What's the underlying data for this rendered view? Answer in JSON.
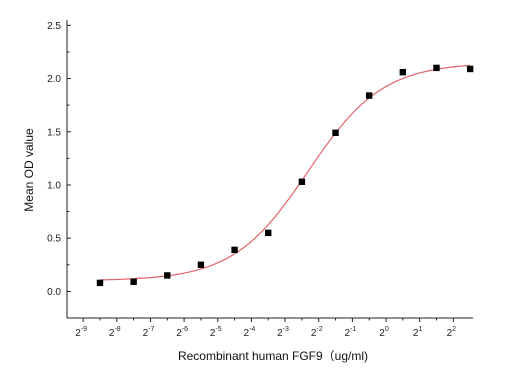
{
  "chart_data": {
    "type": "scatter",
    "title": "",
    "xlabel": "Recombinant human  FGF9（ug/ml)",
    "ylabel": "Mean OD value",
    "x_scale": "log2",
    "x_ticks": [
      {
        "base": "2",
        "exp": "-9",
        "value": 0.001953
      },
      {
        "base": "2",
        "exp": "-8",
        "value": 0.003906
      },
      {
        "base": "2",
        "exp": "-7",
        "value": 0.007813
      },
      {
        "base": "2",
        "exp": "-6",
        "value": 0.015625
      },
      {
        "base": "2",
        "exp": "-5",
        "value": 0.03125
      },
      {
        "base": "2",
        "exp": "-4",
        "value": 0.0625
      },
      {
        "base": "2",
        "exp": "-3",
        "value": 0.125
      },
      {
        "base": "2",
        "exp": "-2",
        "value": 0.25
      },
      {
        "base": "2",
        "exp": "-1",
        "value": 0.5
      },
      {
        "base": "2",
        "exp": "0",
        "value": 1
      },
      {
        "base": "2",
        "exp": "1",
        "value": 2
      },
      {
        "base": "2",
        "exp": "2",
        "value": 4
      }
    ],
    "y_ticks": [
      "0.0",
      "0.5",
      "1.0",
      "1.5",
      "2.0",
      "2.5"
    ],
    "ylim": [
      -0.25,
      2.55
    ],
    "xlim": [
      0.0014,
      6.0
    ],
    "grid": false,
    "series": [
      {
        "marker": "square",
        "color": "#000000",
        "points": [
          {
            "x": 0.002762,
            "y": 0.08
          },
          {
            "x": 0.005524,
            "y": 0.09
          },
          {
            "x": 0.011049,
            "y": 0.15
          },
          {
            "x": 0.022097,
            "y": 0.25
          },
          {
            "x": 0.044194,
            "y": 0.39
          },
          {
            "x": 0.088388,
            "y": 0.55
          },
          {
            "x": 0.176777,
            "y": 1.03
          },
          {
            "x": 0.353553,
            "y": 1.49
          },
          {
            "x": 0.707107,
            "y": 1.84
          },
          {
            "x": 1.414214,
            "y": 2.06
          },
          {
            "x": 2.828427,
            "y": 2.1
          },
          {
            "x": 5.656854,
            "y": 2.09
          }
        ]
      }
    ],
    "fit_curve": {
      "model": "4PL",
      "color": "#e0666b",
      "bottom": 0.1,
      "top": 2.15,
      "ec50": 0.2,
      "hill": 1.3
    }
  }
}
